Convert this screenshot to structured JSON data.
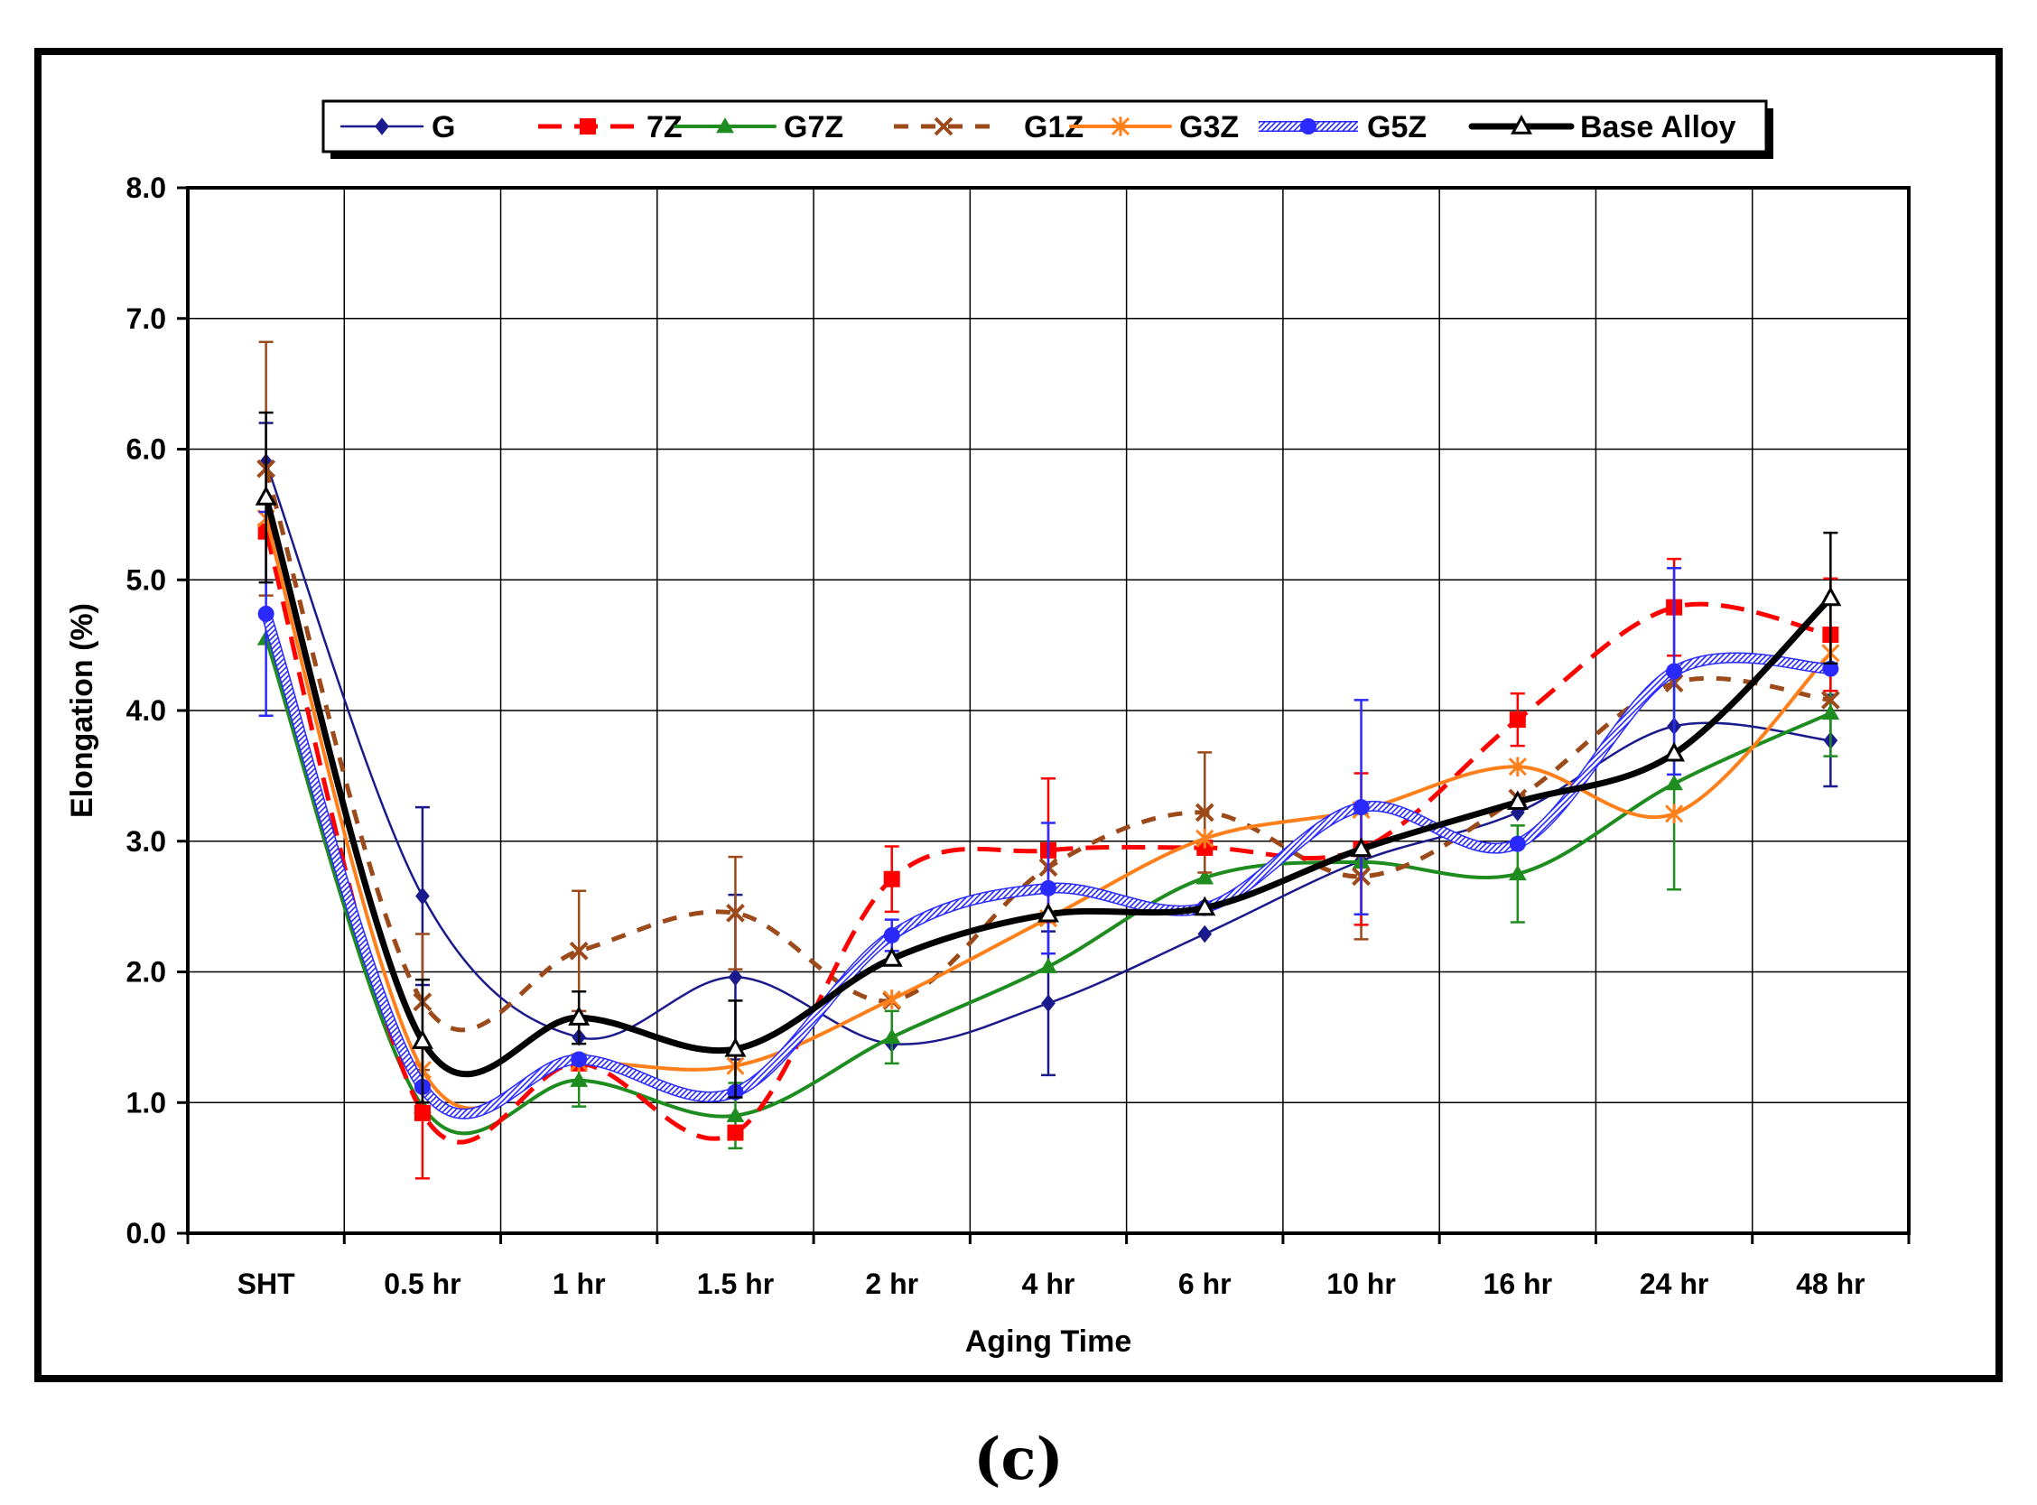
{
  "chart_data": {
    "type": "line",
    "title": "",
    "xlabel": "Aging Time",
    "ylabel": "Elongation (%)",
    "ylim": [
      0,
      8
    ],
    "yticks": [
      "0.0",
      "1.0",
      "2.0",
      "3.0",
      "4.0",
      "5.0",
      "6.0",
      "7.0",
      "8.0"
    ],
    "categories": [
      "SHT",
      "0.5 hr",
      "1 hr",
      "1.5 hr",
      "2 hr",
      "4 hr",
      "6 hr",
      "10 hr",
      "16 hr",
      "24 hr",
      "48 hr"
    ],
    "grid": true,
    "legend_position": "top",
    "series": [
      {
        "name": "G",
        "color": "#1a1a8c",
        "marker": "diamond",
        "dash": "solid",
        "style": "thin",
        "values": [
          5.9,
          2.58,
          1.5,
          1.96,
          1.45,
          1.76,
          2.29,
          2.85,
          3.22,
          3.88,
          3.77
        ],
        "errors": [
          0.3,
          0.68,
          0.0,
          0.63,
          0.0,
          0.55,
          0.0,
          0.0,
          0.0,
          0.0,
          0.35
        ]
      },
      {
        "name": "7Z",
        "color": "#ff0000",
        "marker": "square",
        "dash": "dashed",
        "style": "thick",
        "values": [
          5.37,
          0.92,
          1.3,
          0.77,
          2.71,
          2.93,
          2.95,
          2.94,
          3.93,
          4.79,
          4.58
        ],
        "errors": [
          0.0,
          0.5,
          0.0,
          0.0,
          0.25,
          0.55,
          0.0,
          0.58,
          0.2,
          0.37,
          0.43
        ]
      },
      {
        "name": "G7Z",
        "color": "#1e8c1e",
        "marker": "triangle",
        "dash": "solid",
        "style": "medium",
        "values": [
          4.55,
          0.97,
          1.17,
          0.9,
          1.5,
          2.04,
          2.72,
          2.84,
          2.75,
          3.44,
          3.98
        ],
        "errors": [
          0.0,
          0.0,
          0.2,
          0.25,
          0.2,
          0.0,
          0.0,
          0.0,
          0.37,
          0.81,
          0.33
        ]
      },
      {
        "name": "G1Z",
        "color": "#9c4a1a",
        "marker": "x",
        "dash": "dashed",
        "style": "thick",
        "values": [
          5.85,
          1.77,
          2.16,
          2.45,
          1.78,
          2.8,
          3.22,
          2.73,
          3.33,
          4.21,
          4.08
        ],
        "errors": [
          0.97,
          0.52,
          0.46,
          0.43,
          0.0,
          0.0,
          0.46,
          0.48,
          0.0,
          0.0,
          0.0
        ]
      },
      {
        "name": "G3Z",
        "color": "#ff7f1a",
        "marker": "star",
        "dash": "solid",
        "style": "medium",
        "values": [
          5.47,
          1.25,
          1.31,
          1.28,
          1.79,
          2.41,
          3.02,
          3.24,
          3.57,
          3.21,
          4.44
        ],
        "errors": [
          0.0,
          0.0,
          0.0,
          0.0,
          0.0,
          0.0,
          0.0,
          0.0,
          0.0,
          0.0,
          0.0
        ]
      },
      {
        "name": "G5Z",
        "color": "#2a2aff",
        "marker": "circle",
        "dash": "solid",
        "style": "hatched",
        "values": [
          4.74,
          1.12,
          1.33,
          1.08,
          2.28,
          2.64,
          2.49,
          3.26,
          2.98,
          4.3,
          4.32
        ],
        "errors": [
          0.78,
          0.0,
          0.0,
          0.0,
          0.12,
          0.5,
          0.0,
          0.82,
          0.0,
          0.79,
          0.0
        ]
      },
      {
        "name": "Base Alloy",
        "color": "#000000",
        "marker": "open-triangle",
        "dash": "solid",
        "style": "bold",
        "values": [
          5.63,
          1.47,
          1.65,
          1.41,
          2.1,
          2.44,
          2.49,
          2.94,
          3.3,
          3.67,
          4.86
        ],
        "errors": [
          0.65,
          0.47,
          0.2,
          0.37,
          0.0,
          0.0,
          0.0,
          0.0,
          0.0,
          0.0,
          0.5
        ]
      }
    ]
  },
  "figure": {
    "caption": "(c)"
  }
}
